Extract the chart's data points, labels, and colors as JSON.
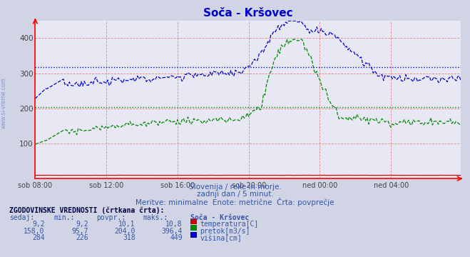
{
  "title": "Soča - Kršovec",
  "title_color": "#0000cc",
  "bg_color": "#d0d4e4",
  "plot_bg_color": "#e8e8f4",
  "grid_color": "#dd8888",
  "ylabel": "",
  "xlabel": "",
  "xlim": [
    0,
    287
  ],
  "ylim": [
    0,
    450
  ],
  "yticks": [
    100,
    200,
    300,
    400
  ],
  "xtick_labels": [
    "sob 08:00",
    "sob 12:00",
    "sob 16:00",
    "sob 20:00",
    "ned 00:00",
    "ned 04:00"
  ],
  "xtick_positions": [
    0,
    48,
    96,
    144,
    192,
    240
  ],
  "avg_pretok": 204.0,
  "avg_visina": 318,
  "temp_color": "#cc0000",
  "pretok_color": "#008800",
  "visina_color": "#0000cc",
  "subtitle1": "Slovenija / reke in morje.",
  "subtitle2": "zadnji dan / 5 minut.",
  "subtitle3": "Meritve: minimalne  Enote: metrične  Črta: povprečje",
  "subtitle_color": "#3355aa",
  "table_header": "ZGODOVINSKE VREDNOSTI (črtkana črta):",
  "col_headers": [
    "sedaj:",
    "min.:",
    "povpr.:",
    "maks.:",
    "Soča - Kršovec"
  ],
  "row1": [
    "9,2",
    "9,2",
    "10,1",
    "10,8",
    "temperatura[C]"
  ],
  "row2": [
    "158,0",
    "95,7",
    "204,0",
    "396,4",
    "pretok[m3/s]"
  ],
  "row3": [
    "284",
    "226",
    "318",
    "449",
    "višina[cm]"
  ],
  "row_colors": [
    "#cc0000",
    "#008800",
    "#0000cc"
  ],
  "left_label": "www.si-vreme.com",
  "left_label_color": "#8899cc"
}
